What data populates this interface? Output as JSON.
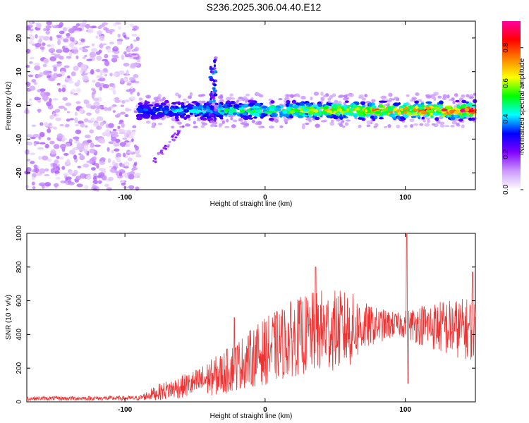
{
  "title": "S236.2025.306.04.40.E12",
  "chart_data": [
    {
      "type": "heatmap",
      "xlabel": "Height of straight line (km)",
      "ylabel": "Frequency (Hz)",
      "xlim": [
        -170,
        150
      ],
      "ylim": [
        -25,
        25
      ],
      "x_ticks": [
        -100,
        0,
        100
      ],
      "y_ticks": [
        -20,
        -10,
        0,
        10,
        20
      ],
      "colorbar": {
        "label": "Normalized spectral amplitude",
        "range": [
          0.0,
          0.95
        ],
        "ticks": [
          0.0,
          0.2,
          0.4,
          0.6,
          0.8
        ],
        "colormap": [
          "#ffffff",
          "#cc99ff",
          "#8000ff",
          "#0000ff",
          "#00ffff",
          "#00ff00",
          "#ffff00",
          "#ff8000",
          "#ff0000",
          "#ff00a0"
        ]
      },
      "features": [
        {
          "name": "noise region",
          "x_range": [
            -170,
            -90
          ],
          "freq_range": [
            -25,
            25
          ],
          "amplitude": 0.1
        },
        {
          "name": "main trace",
          "x_range": [
            -90,
            150
          ],
          "center_freq": -1.5,
          "half_width": 3,
          "amplitude_range": [
            0.2,
            0.95
          ]
        },
        {
          "name": "spike",
          "x": -37,
          "freq_range": [
            -5,
            16
          ]
        },
        {
          "name": "diagonal tail",
          "x_range": [
            -80,
            -58
          ],
          "freq_range": [
            -17,
            -6
          ]
        }
      ]
    },
    {
      "type": "line",
      "xlabel": "Height of straight line (km)",
      "ylabel": "SNR (10 * v/v)",
      "xlim": [
        -170,
        150
      ],
      "ylim": [
        0,
        1000
      ],
      "x_ticks": [
        -100,
        0,
        100
      ],
      "y_ticks": [
        0,
        200,
        400,
        600,
        800,
        1000
      ],
      "series_color": "#ee3333",
      "envelope": [
        {
          "x": -170,
          "mean": 20,
          "spread": 12
        },
        {
          "x": -90,
          "mean": 22,
          "spread": 14
        },
        {
          "x": -75,
          "mean": 60,
          "spread": 50
        },
        {
          "x": -50,
          "mean": 110,
          "spread": 80
        },
        {
          "x": -30,
          "mean": 170,
          "spread": 130
        },
        {
          "x": -15,
          "mean": 240,
          "spread": 160
        },
        {
          "x": 0,
          "mean": 300,
          "spread": 200
        },
        {
          "x": 20,
          "mean": 380,
          "spread": 230
        },
        {
          "x": 40,
          "mean": 420,
          "spread": 250
        },
        {
          "x": 60,
          "mean": 430,
          "spread": 230
        },
        {
          "x": 75,
          "mean": 450,
          "spread": 120
        },
        {
          "x": 95,
          "mean": 460,
          "spread": 70
        },
        {
          "x": 110,
          "mean": 460,
          "spread": 120
        },
        {
          "x": 130,
          "mean": 440,
          "spread": 170
        },
        {
          "x": 150,
          "mean": 430,
          "spread": 190
        }
      ],
      "peaks": [
        {
          "x": -22,
          "y": 500
        },
        {
          "x": 36,
          "y": 800
        },
        {
          "x": 101,
          "y": 1000
        },
        {
          "x": 102,
          "y": 110
        },
        {
          "x": 148,
          "y": 770
        }
      ]
    }
  ]
}
